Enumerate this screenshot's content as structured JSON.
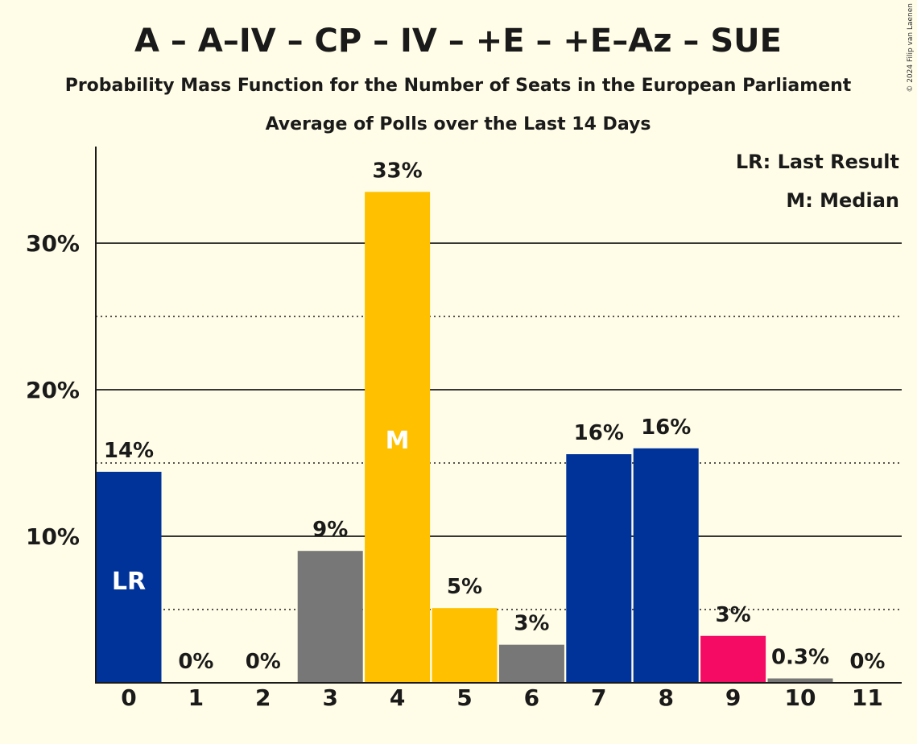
{
  "copyright": "© 2024 Filip van Laenen",
  "chart_data": {
    "type": "bar",
    "title": "A – A–IV – CP – IV – +E – +E–Az – SUE",
    "subtitle": "Probability Mass Function for the Number of Seats in the European Parliament",
    "subtitle2": "Average of Polls over the Last 14 Days",
    "xlabel": "",
    "ylabel": "",
    "ylim": [
      0,
      36.5
    ],
    "y_ticks": [
      {
        "value": 10,
        "label": "10%"
      },
      {
        "value": 20,
        "label": "20%"
      },
      {
        "value": 30,
        "label": "30%"
      }
    ],
    "minor_gridlines": [
      5,
      15,
      25
    ],
    "categories": [
      "0",
      "1",
      "2",
      "3",
      "4",
      "5",
      "6",
      "7",
      "8",
      "9",
      "10",
      "11"
    ],
    "values": [
      14.4,
      0,
      0,
      9.0,
      33.5,
      5.1,
      2.6,
      15.6,
      16.0,
      3.2,
      0.3,
      0
    ],
    "value_labels": [
      "14%",
      "0%",
      "0%",
      "9%",
      "33%",
      "5%",
      "3%",
      "16%",
      "16%",
      "3%",
      "0.3%",
      "0%"
    ],
    "bar_colors": [
      "#003399",
      "#003399",
      "#003399",
      "#777777",
      "#FFC000",
      "#FFC000",
      "#777777",
      "#003399",
      "#003399",
      "#F50A64",
      "#777777",
      "#777777"
    ],
    "markers": [
      {
        "category": "0",
        "text": "LR"
      },
      {
        "category": "4",
        "text": "M"
      }
    ],
    "legend": {
      "position": "top-right",
      "items": [
        "LR: Last Result",
        "M: Median"
      ]
    },
    "grid": true
  }
}
